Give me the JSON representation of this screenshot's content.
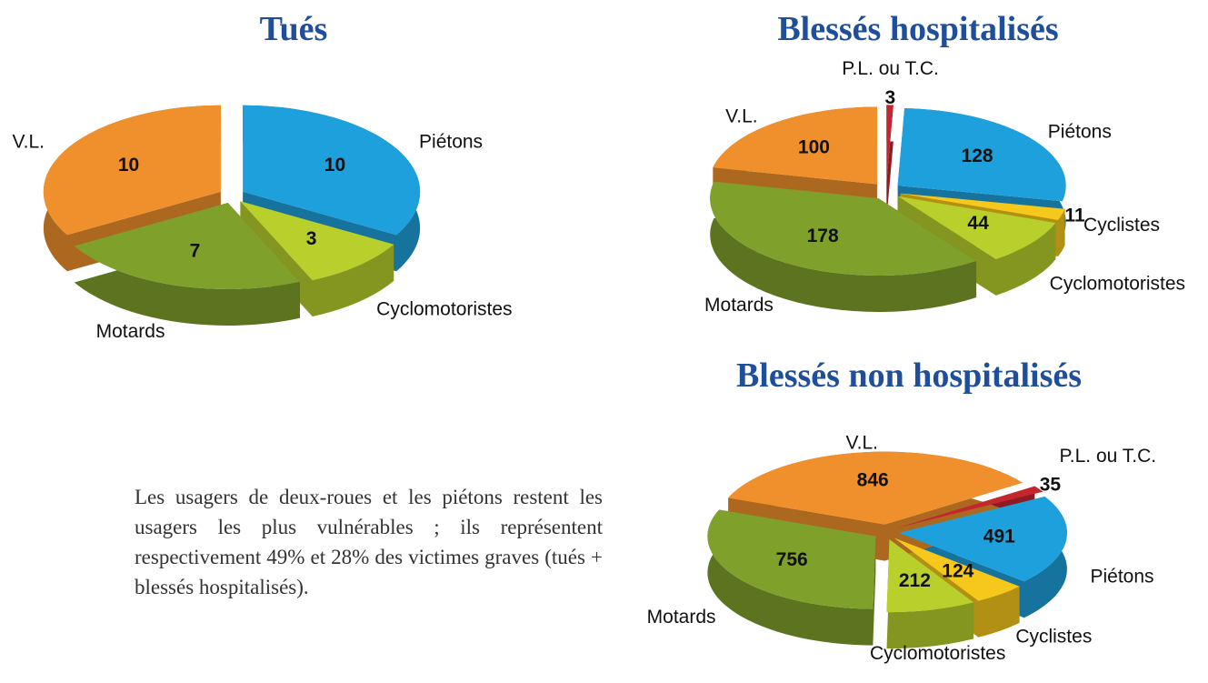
{
  "chart_data": [
    {
      "type": "pie",
      "title": "Tués",
      "categories": [
        "Piétons",
        "Cyclomotoristes",
        "Motards",
        "V.L."
      ],
      "values": [
        10,
        3,
        7,
        10
      ],
      "colors": [
        "#1ea0dc",
        "#b8cf2c",
        "#80a02c",
        "#f0902c"
      ]
    },
    {
      "type": "pie",
      "title": "Blessés hospitalisés",
      "categories": [
        "P.L. ou T.C.",
        "Piétons",
        "Cyclistes",
        "Cyclomotoristes",
        "Motards",
        "V.L."
      ],
      "values": [
        3,
        128,
        11,
        44,
        178,
        100
      ],
      "colors": [
        "#c4262e",
        "#1ea0dc",
        "#f6c81c",
        "#b8cf2c",
        "#80a02c",
        "#f0902c"
      ]
    },
    {
      "type": "pie",
      "title": "Blessés non hospitalisés",
      "categories": [
        "P.L. ou T.C.",
        "Piétons",
        "Cyclistes",
        "Cyclomotoristes",
        "Motards",
        "V.L."
      ],
      "values": [
        35,
        491,
        124,
        212,
        756,
        846
      ],
      "colors": [
        "#c4262e",
        "#1ea0dc",
        "#f6c81c",
        "#b8cf2c",
        "#80a02c",
        "#f0902c"
      ]
    }
  ],
  "text": "Les usagers de deux-roues et les piétons restent les usagers les plus vulnérables ; ils représentent respectivement 49% et 28% des victimes graves (tués + blessés hospitalisés)."
}
